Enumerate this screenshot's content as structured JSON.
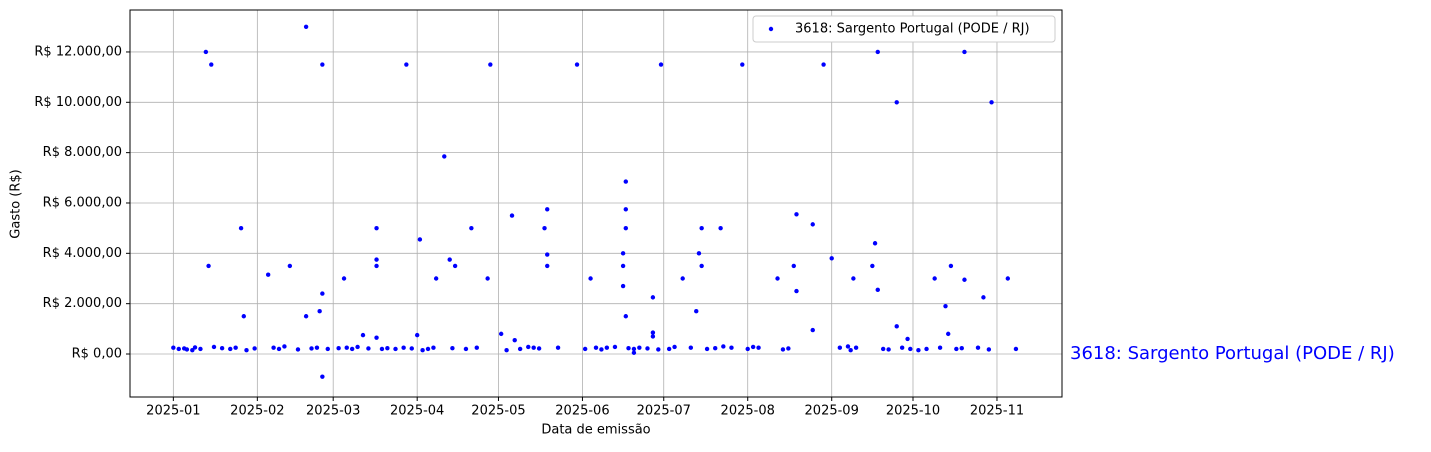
{
  "chart_data": {
    "type": "scatter",
    "xlabel": "Data de emissão",
    "ylabel": "Gasto (R$)",
    "annotation": "3618: Sargento Portugal (PODE / RJ)",
    "legend": "upper right",
    "grid": true,
    "xlim": [
      "2024-12-16",
      "2025-11-25"
    ],
    "ylim": [
      -1708,
      13667
    ],
    "xticks": [
      {
        "value": "2025-01-01",
        "label": "2025-01"
      },
      {
        "value": "2025-02-01",
        "label": "2025-02"
      },
      {
        "value": "2025-03-01",
        "label": "2025-03"
      },
      {
        "value": "2025-04-01",
        "label": "2025-04"
      },
      {
        "value": "2025-05-01",
        "label": "2025-05"
      },
      {
        "value": "2025-06-01",
        "label": "2025-06"
      },
      {
        "value": "2025-07-01",
        "label": "2025-07"
      },
      {
        "value": "2025-08-01",
        "label": "2025-08"
      },
      {
        "value": "2025-09-01",
        "label": "2025-09"
      },
      {
        "value": "2025-10-01",
        "label": "2025-10"
      },
      {
        "value": "2025-11-01",
        "label": "2025-11"
      }
    ],
    "yticks": [
      {
        "value": 0,
        "label": "R$ 0,00"
      },
      {
        "value": 2000,
        "label": "R$ 2.000,00"
      },
      {
        "value": 4000,
        "label": "R$ 4.000,00"
      },
      {
        "value": 6000,
        "label": "R$ 6.000,00"
      },
      {
        "value": 8000,
        "label": "R$ 8.000,00"
      },
      {
        "value": 10000,
        "label": "R$ 10.000,00"
      },
      {
        "value": 12000,
        "label": "R$ 12.000,00"
      }
    ],
    "series": [
      {
        "name": "3618: Sargento Portugal (PODE / RJ)",
        "color": "#0000ff",
        "x": [
          "2025-01-13",
          "2025-01-15",
          "2025-01-14",
          "2025-01-26",
          "2025-01-27",
          "2025-02-05",
          "2025-02-13",
          "2025-02-19",
          "2025-02-19",
          "2025-02-24",
          "2025-02-25",
          "2025-02-25",
          "2025-02-25",
          "2025-03-05",
          "2025-03-12",
          "2025-03-17",
          "2025-03-17",
          "2025-03-17",
          "2025-03-17",
          "2025-03-28",
          "2025-04-01",
          "2025-04-02",
          "2025-04-08",
          "2025-04-11",
          "2025-04-13",
          "2025-04-15",
          "2025-04-21",
          "2025-04-27",
          "2025-04-28",
          "2025-05-02",
          "2025-05-06",
          "2025-05-07",
          "2025-05-18",
          "2025-05-19",
          "2025-05-19",
          "2025-05-19",
          "2025-05-30",
          "2025-06-04",
          "2025-06-16",
          "2025-06-16",
          "2025-06-17",
          "2025-06-17",
          "2025-06-17",
          "2025-06-16",
          "2025-06-17",
          "2025-06-27",
          "2025-06-27",
          "2025-06-27",
          "2025-06-30",
          "2025-07-08",
          "2025-07-13",
          "2025-07-14",
          "2025-07-15",
          "2025-07-15",
          "2025-07-22",
          "2025-07-30",
          "2025-08-12",
          "2025-08-18",
          "2025-08-19",
          "2025-08-19",
          "2025-08-25",
          "2025-08-25",
          "2025-08-29",
          "2025-09-01",
          "2025-09-09",
          "2025-09-16",
          "2025-09-17",
          "2025-09-18",
          "2025-09-18",
          "2025-09-25",
          "2025-09-25",
          "2025-09-29",
          "2025-10-09",
          "2025-10-13",
          "2025-10-14",
          "2025-10-15",
          "2025-10-20",
          "2025-10-20",
          "2025-10-27",
          "2025-10-30",
          "2025-11-05",
          "2025-01-01",
          "2025-01-03",
          "2025-01-05",
          "2025-01-06",
          "2025-01-08",
          "2025-01-09",
          "2025-01-11",
          "2025-01-16",
          "2025-01-19",
          "2025-01-22",
          "2025-01-24",
          "2025-01-28",
          "2025-01-31",
          "2025-02-07",
          "2025-02-09",
          "2025-02-11",
          "2025-02-16",
          "2025-02-21",
          "2025-02-23",
          "2025-02-27",
          "2025-03-03",
          "2025-03-06",
          "2025-03-08",
          "2025-03-10",
          "2025-03-14",
          "2025-03-19",
          "2025-03-21",
          "2025-03-24",
          "2025-03-27",
          "2025-03-30",
          "2025-04-03",
          "2025-04-05",
          "2025-04-07",
          "2025-04-14",
          "2025-04-19",
          "2025-04-23",
          "2025-05-04",
          "2025-05-09",
          "2025-05-12",
          "2025-05-14",
          "2025-05-16",
          "2025-05-23",
          "2025-06-02",
          "2025-06-06",
          "2025-06-08",
          "2025-06-10",
          "2025-06-13",
          "2025-06-18",
          "2025-06-20",
          "2025-06-22",
          "2025-06-25",
          "2025-06-29",
          "2025-07-03",
          "2025-07-05",
          "2025-07-11",
          "2025-07-17",
          "2025-07-20",
          "2025-07-23",
          "2025-07-26",
          "2025-08-01",
          "2025-08-03",
          "2025-08-05",
          "2025-08-14",
          "2025-08-16",
          "2025-09-04",
          "2025-09-07",
          "2025-09-08",
          "2025-09-10",
          "2025-09-20",
          "2025-09-22",
          "2025-09-27",
          "2025-09-30",
          "2025-10-03",
          "2025-10-06",
          "2025-10-11",
          "2025-10-17",
          "2025-10-19",
          "2025-10-25",
          "2025-10-29",
          "2025-11-08",
          "2025-06-20"
        ],
        "values": [
          12000,
          11500,
          3500,
          5000,
          1500,
          3150,
          3500,
          13000,
          1500,
          1700,
          11500,
          2400,
          -900,
          3000,
          750,
          5000,
          3750,
          3500,
          650,
          11500,
          750,
          4550,
          3000,
          7850,
          3750,
          3500,
          5000,
          3000,
          11500,
          800,
          5500,
          550,
          5000,
          5750,
          3950,
          3500,
          11500,
          3000,
          3500,
          4000,
          6850,
          5750,
          5000,
          2700,
          1500,
          2250,
          850,
          700,
          11500,
          3000,
          1700,
          4000,
          5000,
          3500,
          5000,
          11500,
          3000,
          3500,
          5550,
          2500,
          5150,
          950,
          11500,
          3800,
          3000,
          3500,
          4400,
          12000,
          2550,
          1100,
          10000,
          600,
          3000,
          1900,
          800,
          3500,
          12000,
          2950,
          2250,
          10000,
          3000,
          250,
          200,
          220,
          180,
          150,
          260,
          200,
          280,
          230,
          200,
          250,
          150,
          220,
          250,
          200,
          300,
          180,
          220,
          250,
          200,
          230,
          250,
          200,
          280,
          220,
          200,
          230,
          200,
          250,
          220,
          150,
          200,
          250,
          230,
          200,
          250,
          150,
          200,
          280,
          250,
          220,
          250,
          200,
          250,
          180,
          250,
          280,
          230,
          200,
          250,
          220,
          180,
          200,
          280,
          250,
          200,
          230,
          300,
          250,
          200,
          280,
          250,
          180,
          220,
          250,
          300,
          150,
          250,
          200,
          180,
          250,
          200,
          150,
          200,
          250,
          200,
          230,
          250,
          180,
          200,
          50
        ]
      }
    ]
  }
}
